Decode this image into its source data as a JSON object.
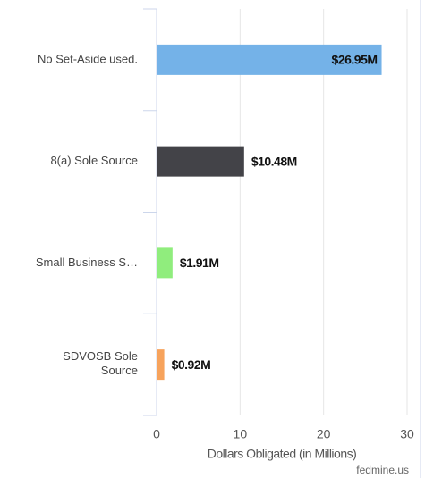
{
  "chart_data": {
    "type": "bar",
    "orientation": "horizontal",
    "categories": [
      "No Set-Aside used.",
      "8(a) Sole Source",
      "Small Business S…",
      "SDVOSB Sole Source"
    ],
    "values": [
      26.95,
      10.48,
      1.91,
      0.92
    ],
    "value_labels": [
      "$26.95M",
      "$10.48M",
      "$1.91M",
      "$0.92M"
    ],
    "colors": [
      "#74b2e8",
      "#434348",
      "#90ed7d",
      "#f7a35c"
    ],
    "xlabel": "Dollars Obligated (in Millions)",
    "xlim": [
      0,
      30
    ],
    "xticks": [
      0,
      10,
      20,
      30
    ],
    "grid": true,
    "credit": "fedmine.us"
  }
}
